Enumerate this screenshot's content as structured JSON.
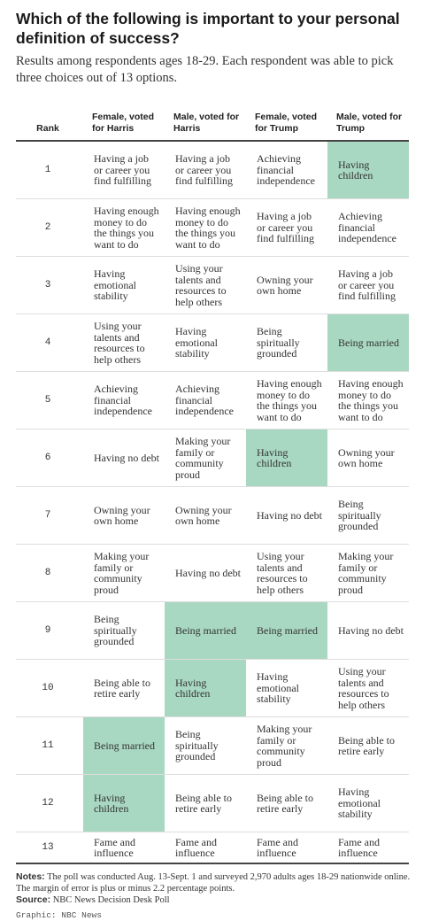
{
  "title": "Which of the following is important to your personal definition of success?",
  "subtitle": "Results among respondents ages 18-29. Each respondent was able to pick three choices out of 13 options.",
  "highlight_color": "#a9d8c2",
  "chart_data": {
    "type": "table",
    "columns": [
      "Rank",
      "Female, voted for Harris",
      "Male, voted for Harris",
      "Female, voted for Trump",
      "Male, voted for Trump"
    ],
    "rows": [
      {
        "rank": "1",
        "cells": [
          "Having a job or career you find fulfilling",
          "Having a job or career you find fulfilling",
          "Achieving financial independence",
          "Having children"
        ],
        "highlight": [
          false,
          false,
          false,
          true
        ]
      },
      {
        "rank": "2",
        "cells": [
          "Having enough money to do the things you want to do",
          "Having enough money to do the things you want to do",
          "Having a job or career you find fulfilling",
          "Achieving financial independence"
        ],
        "highlight": [
          false,
          false,
          false,
          false
        ]
      },
      {
        "rank": "3",
        "cells": [
          "Having emotional stability",
          "Using your talents and resources to help others",
          "Owning your own home",
          "Having a job or career you find fulfilling"
        ],
        "highlight": [
          false,
          false,
          false,
          false
        ]
      },
      {
        "rank": "4",
        "cells": [
          "Using your talents and resources to help others",
          "Having emotional stability",
          "Being spiritually grounded",
          "Being married"
        ],
        "highlight": [
          false,
          false,
          false,
          true
        ]
      },
      {
        "rank": "5",
        "cells": [
          "Achieving financial independence",
          "Achieving financial independence",
          "Having enough money to do the things you want to do",
          "Having enough money to do the things you want to do"
        ],
        "highlight": [
          false,
          false,
          false,
          false
        ]
      },
      {
        "rank": "6",
        "cells": [
          "Having no debt",
          "Making your family or community proud",
          "Having children",
          "Owning your own home"
        ],
        "highlight": [
          false,
          false,
          true,
          false
        ]
      },
      {
        "rank": "7",
        "cells": [
          "Owning your own home",
          "Owning your own home",
          "Having no debt",
          "Being spiritually grounded"
        ],
        "highlight": [
          false,
          false,
          false,
          false
        ]
      },
      {
        "rank": "8",
        "cells": [
          "Making your family or community proud",
          "Having no debt",
          "Using your talents and resources to help others",
          "Making your family or community proud"
        ],
        "highlight": [
          false,
          false,
          false,
          false
        ]
      },
      {
        "rank": "9",
        "cells": [
          "Being spiritually grounded",
          "Being married",
          "Being married",
          "Having no debt"
        ],
        "highlight": [
          false,
          true,
          true,
          false
        ]
      },
      {
        "rank": "10",
        "cells": [
          "Being able to retire early",
          "Having children",
          "Having emotional stability",
          "Using your talents and resources to help others"
        ],
        "highlight": [
          false,
          true,
          false,
          false
        ]
      },
      {
        "rank": "11",
        "cells": [
          "Being married",
          "Being spiritually grounded",
          "Making your family or community proud",
          "Being able to retire early"
        ],
        "highlight": [
          true,
          false,
          false,
          false
        ]
      },
      {
        "rank": "12",
        "cells": [
          "Having children",
          "Being able to retire early",
          "Being able to retire early",
          "Having emotional stability"
        ],
        "highlight": [
          true,
          false,
          false,
          false
        ]
      },
      {
        "rank": "13",
        "cells": [
          "Fame and influence",
          "Fame and influence",
          "Fame and influence",
          "Fame and influence"
        ],
        "highlight": [
          false,
          false,
          false,
          false
        ]
      }
    ]
  },
  "notes": {
    "notes_label": "Notes:",
    "notes_text": "The poll was conducted Aug. 13-Sept. 1 and surveyed 2,970 adults ages 18-29 nationwide online. The margin of error is plus or minus 2.2 percentage points.",
    "source_label": "Source:",
    "source_text": "NBC News Decision Desk Poll",
    "graphic_credit": "Graphic: NBC News"
  }
}
